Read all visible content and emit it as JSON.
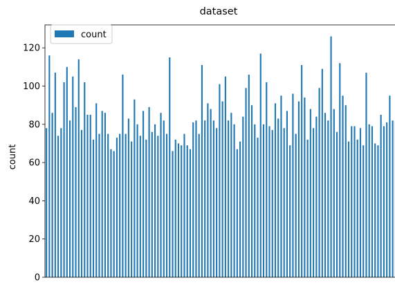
{
  "chart_data": {
    "type": "bar",
    "title": "dataset",
    "xlabel": "",
    "ylabel": "count",
    "ylim": [
      0,
      132
    ],
    "yticks": [
      0,
      20,
      40,
      60,
      80,
      100,
      120
    ],
    "grid": false,
    "legend_position": "top-left",
    "bar_color": "#1f77b4",
    "series": [
      {
        "name": "count",
        "values": [
          78,
          116,
          86,
          107,
          74,
          78,
          102,
          110,
          82,
          105,
          89,
          114,
          77,
          102,
          85,
          85,
          72,
          91,
          75,
          87,
          86,
          75,
          67,
          66,
          73,
          75,
          106,
          75,
          83,
          71,
          93,
          80,
          74,
          87,
          72,
          89,
          76,
          80,
          74,
          86,
          82,
          75,
          115,
          66,
          72,
          70,
          69,
          75,
          69,
          67,
          81,
          82,
          75,
          111,
          82,
          91,
          88,
          82,
          78,
          101,
          92,
          105,
          82,
          86,
          80,
          67,
          71,
          84,
          99,
          106,
          90,
          80,
          73,
          117,
          80,
          102,
          79,
          77,
          91,
          83,
          95,
          78,
          87,
          69,
          96,
          75,
          92,
          111,
          94,
          72,
          88,
          78,
          84,
          99,
          109,
          86,
          82,
          126,
          88,
          76,
          112,
          95,
          90,
          71,
          79,
          79,
          72,
          78,
          69,
          107,
          80,
          79,
          70,
          69,
          85,
          79,
          81,
          95,
          82,
          82
        ]
      }
    ]
  }
}
